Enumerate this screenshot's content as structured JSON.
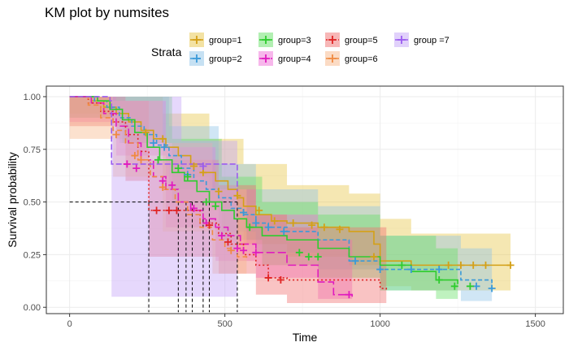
{
  "title": "KM plot by numsites",
  "legend": {
    "title": "Strata"
  },
  "chart_data": {
    "type": "line",
    "chart_subtype": "kaplan-meier",
    "title": "KM plot by numsites",
    "xlabel": "Time",
    "ylabel": "Survival probability",
    "xlim": [
      -75,
      1590
    ],
    "ylim": [
      -0.03,
      1.05
    ],
    "x_ticks": [
      0,
      500,
      1000,
      1500
    ],
    "x_tick_labels": [
      "0",
      "500",
      "1000",
      "1500"
    ],
    "y_ticks": [
      0,
      0.25,
      0.5,
      0.75,
      1.0
    ],
    "y_tick_labels": [
      "0.00",
      "0.25",
      "0.50",
      "0.75",
      "1.00"
    ],
    "grid": true,
    "legend_position": "top",
    "median_reference": {
      "y": 0.5,
      "medians": [
        255,
        350,
        375,
        395,
        430,
        450,
        540
      ]
    },
    "series": [
      {
        "name": "group=1",
        "color": "#d4a017",
        "fill": "#e8c547",
        "dash": "",
        "steps": [
          [
            0,
            1.0
          ],
          [
            70,
            0.98
          ],
          [
            110,
            0.95
          ],
          [
            150,
            0.92
          ],
          [
            190,
            0.88
          ],
          [
            230,
            0.84
          ],
          [
            270,
            0.8
          ],
          [
            310,
            0.76
          ],
          [
            350,
            0.72
          ],
          [
            390,
            0.68
          ],
          [
            430,
            0.64
          ],
          [
            470,
            0.6
          ],
          [
            510,
            0.56
          ],
          [
            540,
            0.52
          ],
          [
            560,
            0.48
          ],
          [
            600,
            0.44
          ],
          [
            650,
            0.41
          ],
          [
            700,
            0.4
          ],
          [
            800,
            0.38
          ],
          [
            900,
            0.36
          ],
          [
            980,
            0.3
          ],
          [
            1000,
            0.22
          ],
          [
            1100,
            0.2
          ],
          [
            1420,
            0.2
          ]
        ],
        "censor": [
          [
            245,
            0.83
          ],
          [
            300,
            0.8
          ],
          [
            400,
            0.67
          ],
          [
            430,
            0.64
          ],
          [
            480,
            0.55
          ],
          [
            540,
            0.53
          ],
          [
            610,
            0.46
          ],
          [
            660,
            0.41
          ],
          [
            720,
            0.4
          ],
          [
            780,
            0.39
          ],
          [
            820,
            0.38
          ],
          [
            870,
            0.37
          ],
          [
            980,
            0.24
          ],
          [
            1220,
            0.2
          ],
          [
            1260,
            0.2
          ],
          [
            1300,
            0.2
          ],
          [
            1340,
            0.2
          ],
          [
            1420,
            0.2
          ]
        ],
        "ci_lower": [
          [
            0,
            0.92
          ],
          [
            150,
            0.8
          ],
          [
            300,
            0.62
          ],
          [
            450,
            0.46
          ],
          [
            560,
            0.3
          ],
          [
            700,
            0.24
          ],
          [
            900,
            0.2
          ],
          [
            1000,
            0.1
          ],
          [
            1100,
            0.08
          ],
          [
            1420,
            0.08
          ]
        ],
        "ci_upper": [
          [
            0,
            1.0
          ],
          [
            150,
            1.0
          ],
          [
            300,
            0.92
          ],
          [
            450,
            0.8
          ],
          [
            560,
            0.68
          ],
          [
            700,
            0.58
          ],
          [
            900,
            0.54
          ],
          [
            1000,
            0.42
          ],
          [
            1100,
            0.35
          ],
          [
            1420,
            0.35
          ]
        ]
      },
      {
        "name": "group=2",
        "color": "#3a9ad9",
        "fill": "#8ec3e8",
        "dash": "5,3",
        "steps": [
          [
            0,
            1.0
          ],
          [
            80,
            0.98
          ],
          [
            120,
            0.95
          ],
          [
            160,
            0.9
          ],
          [
            200,
            0.86
          ],
          [
            240,
            0.82
          ],
          [
            280,
            0.77
          ],
          [
            320,
            0.72
          ],
          [
            360,
            0.66
          ],
          [
            400,
            0.6
          ],
          [
            440,
            0.56
          ],
          [
            480,
            0.52
          ],
          [
            520,
            0.47
          ],
          [
            560,
            0.44
          ],
          [
            600,
            0.4
          ],
          [
            640,
            0.38
          ],
          [
            700,
            0.36
          ],
          [
            800,
            0.32
          ],
          [
            900,
            0.22
          ],
          [
            1000,
            0.18
          ],
          [
            1260,
            0.13
          ],
          [
            1360,
            0.09
          ]
        ],
        "censor": [
          [
            270,
            0.78
          ],
          [
            305,
            0.76
          ],
          [
            380,
            0.63
          ],
          [
            560,
            0.45
          ],
          [
            600,
            0.4
          ],
          [
            640,
            0.38
          ],
          [
            690,
            0.36
          ],
          [
            920,
            0.22
          ],
          [
            1000,
            0.18
          ],
          [
            1100,
            0.18
          ],
          [
            1190,
            0.18
          ],
          [
            1310,
            0.1
          ],
          [
            1360,
            0.09
          ]
        ],
        "ci_lower": [
          [
            0,
            0.9
          ],
          [
            160,
            0.78
          ],
          [
            320,
            0.56
          ],
          [
            480,
            0.36
          ],
          [
            600,
            0.26
          ],
          [
            800,
            0.18
          ],
          [
            1000,
            0.08
          ],
          [
            1260,
            0.03
          ],
          [
            1360,
            0.02
          ]
        ],
        "ci_upper": [
          [
            0,
            1.0
          ],
          [
            160,
            1.0
          ],
          [
            320,
            0.86
          ],
          [
            480,
            0.68
          ],
          [
            600,
            0.56
          ],
          [
            800,
            0.48
          ],
          [
            1000,
            0.34
          ],
          [
            1260,
            0.28
          ],
          [
            1360,
            0.24
          ]
        ]
      },
      {
        "name": "group=3",
        "color": "#2ecc2e",
        "fill": "#66e066",
        "dash": "",
        "steps": [
          [
            0,
            1.0
          ],
          [
            90,
            0.98
          ],
          [
            130,
            0.94
          ],
          [
            170,
            0.89
          ],
          [
            210,
            0.83
          ],
          [
            250,
            0.76
          ],
          [
            290,
            0.7
          ],
          [
            330,
            0.64
          ],
          [
            370,
            0.6
          ],
          [
            410,
            0.55
          ],
          [
            450,
            0.5
          ],
          [
            490,
            0.46
          ],
          [
            530,
            0.42
          ],
          [
            570,
            0.38
          ],
          [
            620,
            0.34
          ],
          [
            700,
            0.32
          ],
          [
            800,
            0.28
          ],
          [
            900,
            0.24
          ],
          [
            1000,
            0.2
          ],
          [
            1100,
            0.17
          ],
          [
            1180,
            0.13
          ],
          [
            1250,
            0.11
          ]
        ],
        "censor": [
          [
            285,
            0.7
          ],
          [
            350,
            0.66
          ],
          [
            380,
            0.62
          ],
          [
            440,
            0.5
          ],
          [
            470,
            0.48
          ],
          [
            580,
            0.38
          ],
          [
            740,
            0.26
          ],
          [
            770,
            0.24
          ],
          [
            800,
            0.24
          ],
          [
            1070,
            0.2
          ],
          [
            1190,
            0.13
          ],
          [
            1240,
            0.1
          ],
          [
            1290,
            0.1
          ]
        ],
        "ci_lower": [
          [
            0,
            0.9
          ],
          [
            170,
            0.78
          ],
          [
            330,
            0.5
          ],
          [
            490,
            0.32
          ],
          [
            620,
            0.2
          ],
          [
            800,
            0.14
          ],
          [
            1000,
            0.08
          ],
          [
            1180,
            0.04
          ],
          [
            1250,
            0.03
          ]
        ],
        "ci_upper": [
          [
            0,
            1.0
          ],
          [
            170,
            1.0
          ],
          [
            330,
            0.8
          ],
          [
            490,
            0.62
          ],
          [
            620,
            0.5
          ],
          [
            800,
            0.44
          ],
          [
            1000,
            0.34
          ],
          [
            1180,
            0.28
          ],
          [
            1250,
            0.26
          ]
        ]
      },
      {
        "name": "group=4",
        "color": "#e01bbf",
        "fill": "#f06fd8",
        "dash": "10,4",
        "steps": [
          [
            0,
            1.0
          ],
          [
            70,
            0.97
          ],
          [
            110,
            0.92
          ],
          [
            150,
            0.86
          ],
          [
            190,
            0.78
          ],
          [
            230,
            0.7
          ],
          [
            270,
            0.62
          ],
          [
            310,
            0.56
          ],
          [
            350,
            0.5
          ],
          [
            390,
            0.46
          ],
          [
            430,
            0.42
          ],
          [
            470,
            0.38
          ],
          [
            510,
            0.34
          ],
          [
            550,
            0.3
          ],
          [
            600,
            0.26
          ],
          [
            700,
            0.2
          ],
          [
            800,
            0.12
          ],
          [
            850,
            0.06
          ],
          [
            910,
            0.05
          ]
        ],
        "censor": [
          [
            185,
            0.68
          ],
          [
            215,
            0.66
          ],
          [
            300,
            0.6
          ],
          [
            330,
            0.58
          ],
          [
            400,
            0.47
          ],
          [
            440,
            0.4
          ],
          [
            490,
            0.34
          ],
          [
            540,
            0.28
          ],
          [
            560,
            0.27
          ],
          [
            600,
            0.26
          ],
          [
            900,
            0.06
          ]
        ],
        "ci_lower": [
          [
            0,
            0.88
          ],
          [
            150,
            0.72
          ],
          [
            310,
            0.38
          ],
          [
            470,
            0.22
          ],
          [
            600,
            0.14
          ],
          [
            800,
            0.04
          ],
          [
            910,
            0.0
          ]
        ],
        "ci_upper": [
          [
            0,
            1.0
          ],
          [
            150,
            0.98
          ],
          [
            310,
            0.76
          ],
          [
            470,
            0.56
          ],
          [
            600,
            0.44
          ],
          [
            800,
            0.32
          ],
          [
            910,
            0.22
          ]
        ]
      },
      {
        "name": "group=5",
        "color": "#e02424",
        "fill": "#f07070",
        "dash": "2,3",
        "steps": [
          [
            0,
            1.0
          ],
          [
            60,
            0.97
          ],
          [
            100,
            0.93
          ],
          [
            140,
            0.88
          ],
          [
            180,
            0.82
          ],
          [
            220,
            0.74
          ],
          [
            255,
            0.46
          ],
          [
            420,
            0.4
          ],
          [
            480,
            0.35
          ],
          [
            520,
            0.3
          ],
          [
            560,
            0.25
          ],
          [
            600,
            0.2
          ],
          [
            640,
            0.14
          ],
          [
            700,
            0.13
          ],
          [
            1000,
            0.09
          ],
          [
            1020,
            0.08
          ]
        ],
        "censor": [
          [
            280,
            0.46
          ],
          [
            320,
            0.46
          ],
          [
            345,
            0.46
          ],
          [
            450,
            0.39
          ],
          [
            510,
            0.31
          ],
          [
            640,
            0.14
          ],
          [
            680,
            0.13
          ]
        ],
        "ci_lower": [
          [
            0,
            0.86
          ],
          [
            180,
            0.6
          ],
          [
            255,
            0.24
          ],
          [
            480,
            0.16
          ],
          [
            600,
            0.06
          ],
          [
            700,
            0.02
          ],
          [
            1020,
            0.01
          ]
        ],
        "ci_upper": [
          [
            0,
            1.0
          ],
          [
            180,
            0.98
          ],
          [
            255,
            0.7
          ],
          [
            480,
            0.58
          ],
          [
            600,
            0.44
          ],
          [
            700,
            0.38
          ],
          [
            1020,
            0.35
          ]
        ]
      },
      {
        "name": "group=6",
        "color": "#f08a40",
        "fill": "#f7b88a",
        "dash": "6,4",
        "steps": [
          [
            0,
            1.0
          ],
          [
            60,
            0.96
          ],
          [
            100,
            0.9
          ],
          [
            140,
            0.84
          ],
          [
            180,
            0.78
          ],
          [
            220,
            0.7
          ],
          [
            260,
            0.62
          ],
          [
            300,
            0.56
          ],
          [
            340,
            0.5
          ],
          [
            380,
            0.44
          ],
          [
            420,
            0.38
          ],
          [
            460,
            0.32
          ],
          [
            500,
            0.28
          ],
          [
            540,
            0.24
          ],
          [
            570,
            0.22
          ]
        ],
        "censor": [
          [
            150,
            0.82
          ],
          [
            210,
            0.72
          ],
          [
            230,
            0.7
          ],
          [
            300,
            0.57
          ],
          [
            520,
            0.27
          ]
        ],
        "ci_lower": [
          [
            0,
            0.8
          ],
          [
            140,
            0.62
          ],
          [
            300,
            0.36
          ],
          [
            460,
            0.16
          ],
          [
            570,
            0.08
          ]
        ],
        "ci_upper": [
          [
            0,
            1.0
          ],
          [
            140,
            0.98
          ],
          [
            300,
            0.78
          ],
          [
            460,
            0.56
          ],
          [
            570,
            0.46
          ]
        ]
      },
      {
        "name": "group =7",
        "color": "#9b5cf0",
        "fill": "#c4a3f7",
        "dash": "7,3",
        "steps": [
          [
            0,
            1.0
          ],
          [
            130,
            0.98
          ],
          [
            135,
            0.68
          ],
          [
            540,
            0.55
          ]
        ],
        "censor": [
          [
            430,
            0.67
          ]
        ],
        "ci_lower": [
          [
            0,
            1.0
          ],
          [
            135,
            0.05
          ],
          [
            540,
            0.05
          ]
        ],
        "ci_upper": [
          [
            0,
            1.0
          ],
          [
            135,
            1.0
          ],
          [
            360,
            0.79
          ],
          [
            420,
            0.79
          ],
          [
            540,
            0.85
          ]
        ]
      }
    ]
  }
}
